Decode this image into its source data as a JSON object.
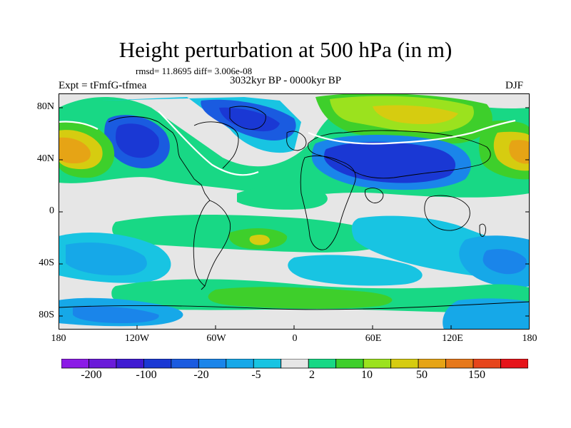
{
  "title": "Height perturbation at 500 hPa (in m)",
  "stats": "rmsd= 11.8695 diff= 3.006e-08",
  "expt": "Expt = tFmfG-tfmea",
  "period": "3032kyr BP - 0000kyr BP",
  "season": "DJF",
  "lat_labels": [
    "80N",
    "40N",
    "0",
    "40S",
    "80S"
  ],
  "lon_labels": [
    "180",
    "120W",
    "60W",
    "0",
    "60E",
    "120E",
    "180"
  ],
  "colorbar": {
    "colors": [
      "#8b1ae6",
      "#6a1ad9",
      "#3f1ad2",
      "#1a38d4",
      "#1a5be0",
      "#1a85ea",
      "#16a8e8",
      "#18c4e2",
      "#e6e6e6",
      "#18d885",
      "#3ecf2b",
      "#9be21e",
      "#d6cc10",
      "#e6a415",
      "#e6781a",
      "#e6451c",
      "#e6141a"
    ],
    "labels": [
      "-200",
      "-100",
      "-20",
      "-5",
      "2",
      "10",
      "50",
      "150"
    ]
  },
  "map_palette": {
    "background": "#e6e6e6",
    "light_green": "#18d885",
    "green": "#3ecf2b",
    "lime": "#9be21e",
    "yellow": "#d6cc10",
    "orange": "#e6a415",
    "cyan": "#18c4e2",
    "sky": "#16a8e8",
    "blue": "#1a85ea",
    "mid_blue": "#1a5be0",
    "deep_blue": "#1a38d4"
  }
}
